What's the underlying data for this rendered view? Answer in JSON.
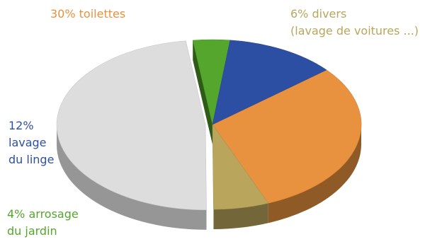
{
  "chart_data": {
    "type": "pie",
    "style": "3d-exploded",
    "slices": [
      {
        "label": "30% toilettes",
        "value": 30,
        "color": "#E8913E"
      },
      {
        "label": "6% divers (lavage de voitures ...)",
        "value": 6,
        "color": "#B9A65C"
      },
      {
        "label": "",
        "value": 48,
        "color": "#DDDDDD"
      },
      {
        "label": "4% arrosage du jardin",
        "value": 4,
        "color": "#55A62C"
      },
      {
        "label": "12% lavage du linge",
        "value": 12,
        "color": "#2D4FA3"
      }
    ]
  },
  "labels": {
    "toilettes": {
      "line1": "30% toilettes",
      "color": "#E8913E"
    },
    "divers": {
      "line1": "6% divers",
      "line2": "(lavage de voitures ...)",
      "color": "#B9A65C"
    },
    "linge": {
      "line1": "12%",
      "line2": "lavage",
      "line3": "du linge",
      "color": "#2D4FA3"
    },
    "jardin": {
      "line1": "4% arrosage",
      "line2": "du jardin",
      "color": "#55A62C"
    }
  }
}
